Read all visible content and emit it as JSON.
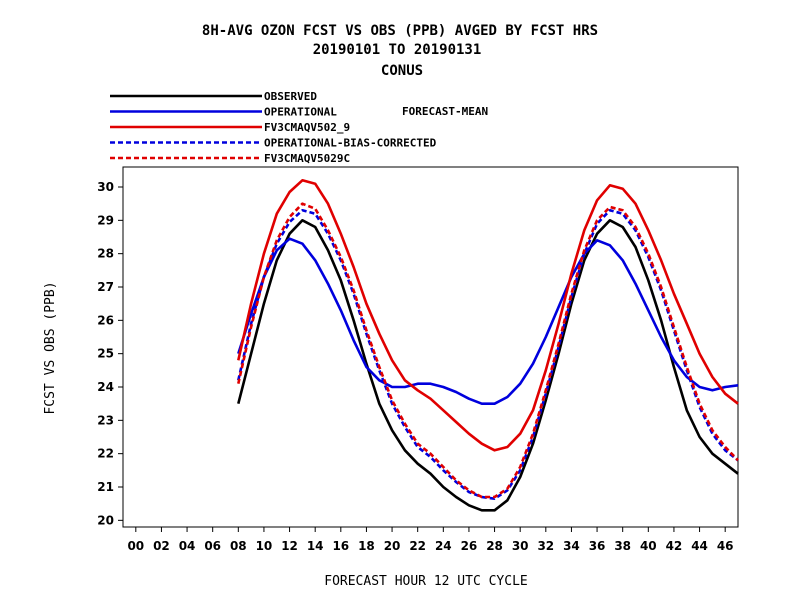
{
  "chart_data": {
    "type": "line",
    "title_lines": [
      "8H-AVG OZON FCST VS OBS (PPB)  AVGED BY FCST HRS",
      "20190101 TO 20190131",
      "CONUS"
    ],
    "xlabel": "FORECAST HOUR  12 UTC CYCLE",
    "ylabel": "FCST VS OBS (PPB)",
    "legend_note": "FORECAST-MEAN",
    "xlim": [
      -1,
      47
    ],
    "ylim": [
      19.8,
      30.6
    ],
    "x_ticks": [
      "00",
      "02",
      "04",
      "06",
      "08",
      "10",
      "12",
      "14",
      "16",
      "18",
      "20",
      "22",
      "24",
      "26",
      "28",
      "30",
      "32",
      "34",
      "36",
      "38",
      "40",
      "42",
      "44",
      "46"
    ],
    "y_ticks": [
      20,
      21,
      22,
      23,
      24,
      25,
      26,
      27,
      28,
      29,
      30
    ],
    "grid": false,
    "legend_position": "top-left",
    "x": [
      8,
      9,
      10,
      11,
      12,
      13,
      14,
      15,
      16,
      17,
      18,
      19,
      20,
      21,
      22,
      23,
      24,
      25,
      26,
      27,
      28,
      29,
      30,
      31,
      32,
      33,
      34,
      35,
      36,
      37,
      38,
      39,
      40,
      41,
      42,
      43,
      44,
      45,
      46,
      47
    ],
    "series": [
      {
        "name": "OBSERVED",
        "color": "#000000",
        "dash": "solid",
        "values": [
          23.5,
          25.0,
          26.5,
          27.8,
          28.6,
          29.0,
          28.8,
          28.1,
          27.2,
          26.0,
          24.7,
          23.5,
          22.7,
          22.1,
          21.7,
          21.4,
          21.0,
          20.7,
          20.45,
          20.3,
          20.3,
          20.6,
          21.3,
          22.3,
          23.6,
          25.0,
          26.5,
          27.8,
          28.6,
          29.0,
          28.8,
          28.2,
          27.2,
          26.0,
          24.6,
          23.3,
          22.5,
          22.0,
          21.7,
          21.4
        ]
      },
      {
        "name": "OPERATIONAL",
        "color": "#0000dd",
        "dash": "solid",
        "values": [
          25.0,
          26.2,
          27.3,
          28.1,
          28.45,
          28.3,
          27.8,
          27.1,
          26.3,
          25.4,
          24.6,
          24.2,
          24.0,
          24.0,
          24.1,
          24.1,
          24.0,
          23.85,
          23.65,
          23.5,
          23.5,
          23.7,
          24.1,
          24.7,
          25.5,
          26.4,
          27.3,
          28.0,
          28.4,
          28.25,
          27.8,
          27.1,
          26.3,
          25.5,
          24.8,
          24.3,
          24.0,
          23.9,
          24.0,
          24.05
        ]
      },
      {
        "name": "FV3CMAQV502_9",
        "color": "#e00000",
        "dash": "solid",
        "values": [
          24.8,
          26.5,
          28.0,
          29.2,
          29.85,
          30.2,
          30.1,
          29.5,
          28.6,
          27.6,
          26.5,
          25.6,
          24.8,
          24.2,
          23.9,
          23.65,
          23.3,
          22.95,
          22.6,
          22.3,
          22.1,
          22.2,
          22.6,
          23.3,
          24.5,
          25.9,
          27.4,
          28.7,
          29.6,
          30.05,
          29.95,
          29.5,
          28.7,
          27.8,
          26.8,
          25.9,
          25.0,
          24.3,
          23.8,
          23.5
        ]
      },
      {
        "name": "OPERATIONAL-BIAS-CORRECTED",
        "color": "#0000dd",
        "dash": "dashed",
        "values": [
          24.2,
          25.9,
          27.3,
          28.3,
          28.95,
          29.3,
          29.2,
          28.6,
          27.8,
          26.8,
          25.6,
          24.5,
          23.5,
          22.8,
          22.2,
          21.9,
          21.5,
          21.15,
          20.85,
          20.7,
          20.65,
          20.9,
          21.5,
          22.5,
          23.8,
          25.2,
          26.7,
          28.0,
          28.9,
          29.3,
          29.2,
          28.7,
          27.9,
          26.9,
          25.7,
          24.5,
          23.4,
          22.6,
          22.1,
          21.8
        ]
      },
      {
        "name": "FV3CMAQV5029C",
        "color": "#e00000",
        "dash": "dashed",
        "values": [
          24.1,
          25.8,
          27.3,
          28.4,
          29.1,
          29.5,
          29.35,
          28.7,
          27.9,
          26.9,
          25.7,
          24.6,
          23.6,
          22.9,
          22.3,
          22.0,
          21.6,
          21.2,
          20.9,
          20.7,
          20.7,
          20.95,
          21.6,
          22.6,
          23.9,
          25.3,
          26.8,
          28.1,
          29.0,
          29.4,
          29.3,
          28.8,
          28.0,
          27.0,
          25.8,
          24.6,
          23.5,
          22.7,
          22.2,
          21.8
        ]
      }
    ]
  }
}
